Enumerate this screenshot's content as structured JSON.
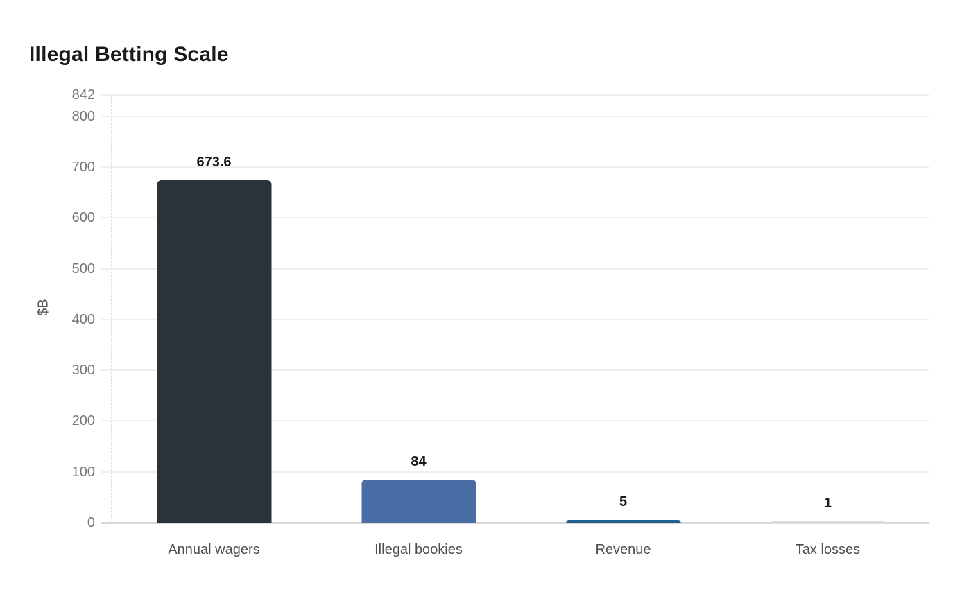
{
  "chart_data": {
    "type": "bar",
    "title": "Illegal Betting Scale",
    "xlabel": "",
    "ylabel": "$B",
    "categories": [
      "Annual wagers",
      "Illegal bookies",
      "Revenue",
      "Tax losses"
    ],
    "values": [
      673.6,
      84,
      5,
      1
    ],
    "value_labels": [
      "673.6",
      "84",
      "5",
      "1"
    ],
    "bar_colors": [
      "#2b3338",
      "#4a6da6",
      "#1f608f",
      "#dcdcdc"
    ],
    "yticks": [
      0,
      100,
      200,
      300,
      400,
      500,
      600,
      700,
      800,
      842
    ],
    "ylim": [
      0,
      842
    ],
    "grid": true,
    "legend": false,
    "colors": {
      "background": "#ffffff",
      "gridline": "#efefef",
      "axis_line": "#d9d9d9",
      "tick_label": "#757575",
      "category_label": "#4d4d4d",
      "value_label": "#1a1a1a",
      "title": "#1a1a1a",
      "ylabel": "#555555"
    }
  }
}
